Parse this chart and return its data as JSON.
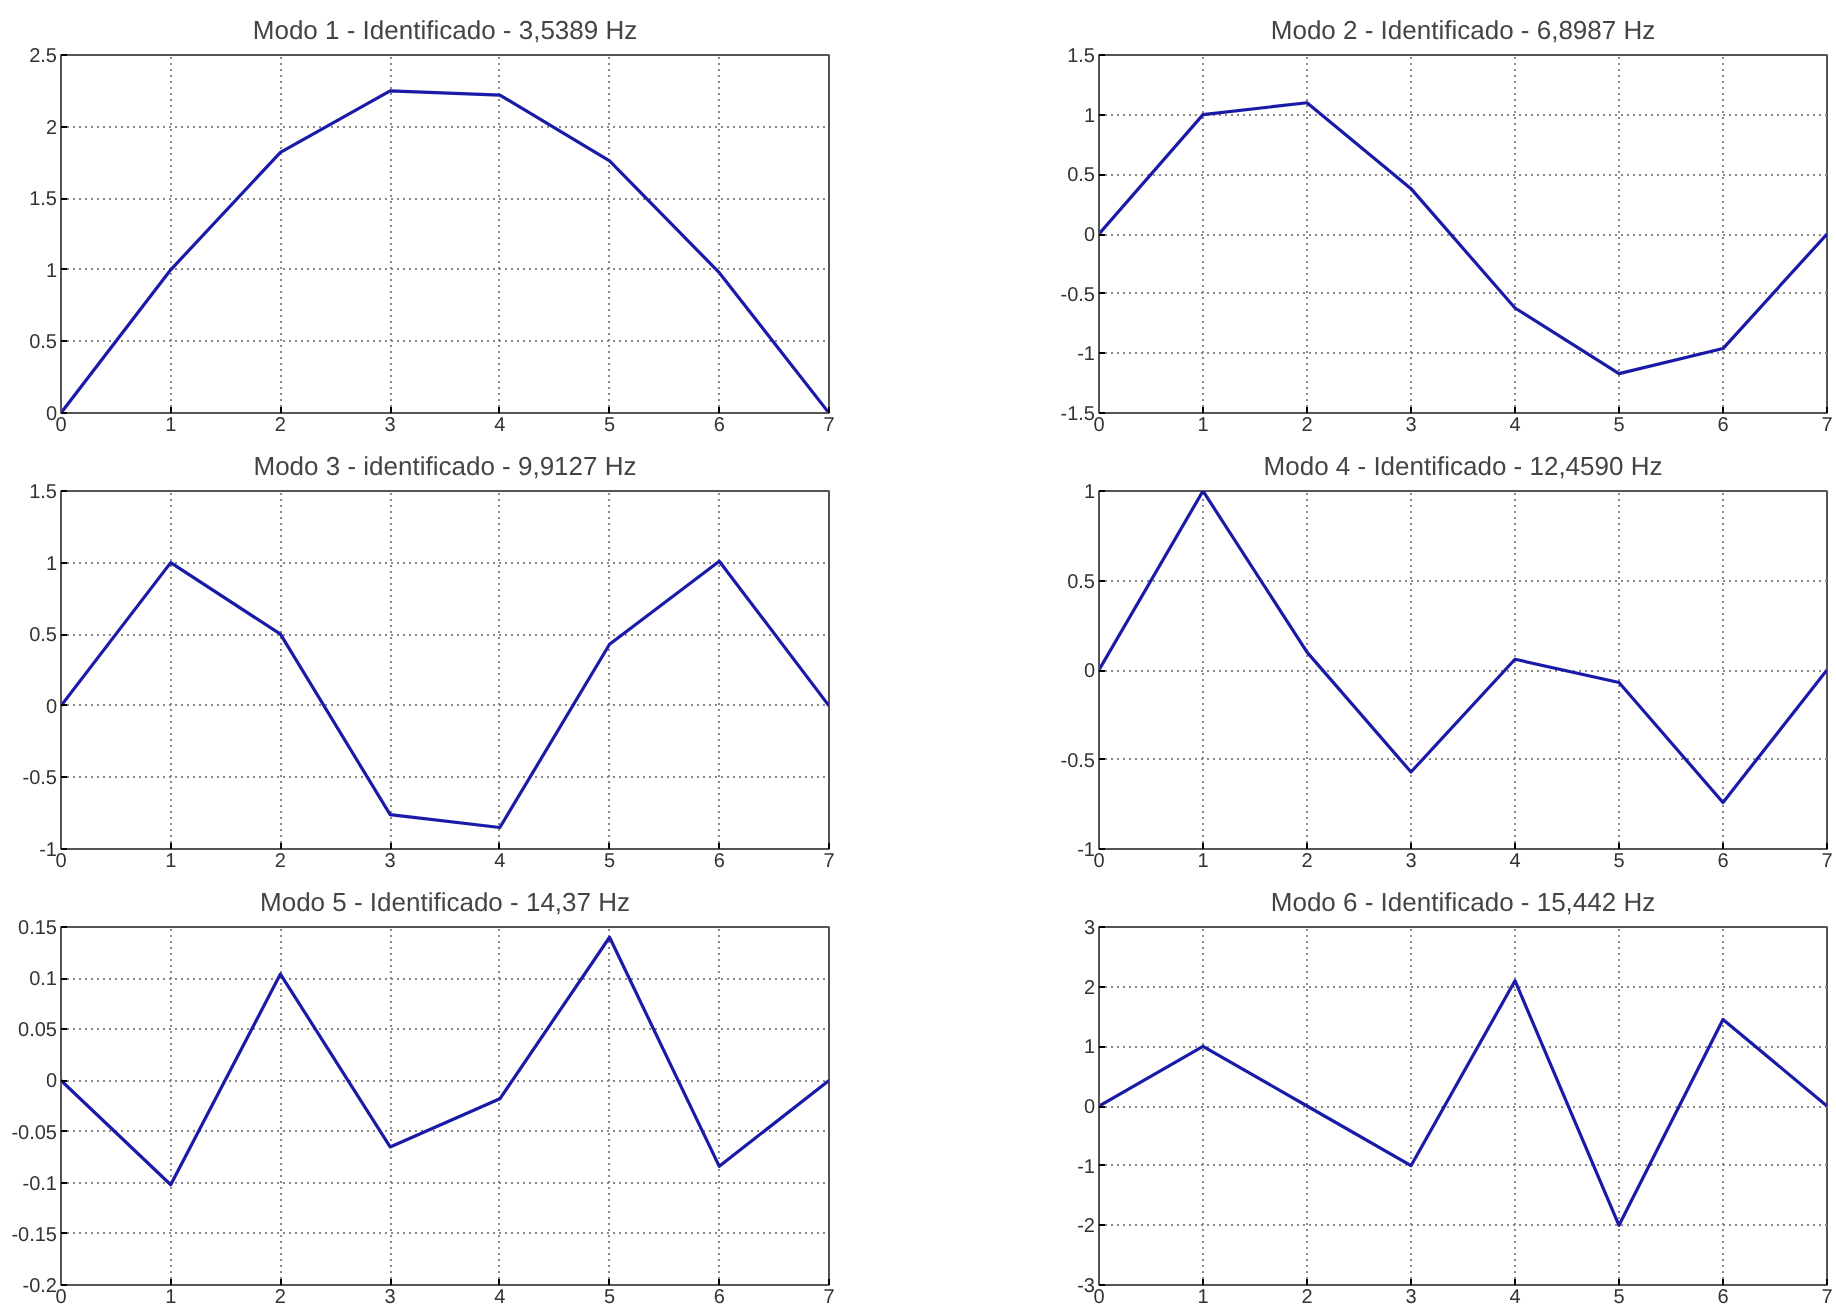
{
  "chart_data": [
    {
      "type": "line",
      "title": "Modo 1 - Identificado - 3,5389 Hz",
      "x": [
        0,
        1,
        2,
        3,
        4,
        5,
        6,
        7
      ],
      "values": [
        0,
        1,
        1.82,
        2.25,
        2.22,
        1.76,
        0.98,
        0
      ],
      "color": "#1a1aa8",
      "xlim": [
        0,
        7
      ],
      "ylim": [
        0,
        2.5
      ],
      "xticks": [
        0,
        1,
        2,
        3,
        4,
        5,
        6,
        7
      ],
      "yticks": [
        0,
        0.5,
        1,
        1.5,
        2,
        2.5
      ],
      "grid": true,
      "line_style": "solid"
    },
    {
      "type": "line",
      "title": "Modo 2 - Identificado - 6,8987 Hz",
      "x": [
        0,
        1,
        2,
        3,
        4,
        5,
        6,
        7
      ],
      "values": [
        0,
        1,
        1.1,
        0.38,
        -0.62,
        -1.17,
        -0.96,
        0
      ],
      "color": "#1a1aa8",
      "xlim": [
        0,
        7
      ],
      "ylim": [
        -1.5,
        1.5
      ],
      "xticks": [
        0,
        1,
        2,
        3,
        4,
        5,
        6,
        7
      ],
      "yticks": [
        -1.5,
        -1,
        -0.5,
        0,
        0.5,
        1,
        1.5
      ],
      "grid": true,
      "line_style": "solid"
    },
    {
      "type": "line",
      "title": "Modo 3 - identificado - 9,9127 Hz",
      "x": [
        0,
        1,
        2,
        3,
        4,
        5,
        6,
        7
      ],
      "values": [
        0,
        1,
        0.5,
        -0.76,
        -0.85,
        0.43,
        1.01,
        0
      ],
      "color": "#1a1aa8",
      "xlim": [
        0,
        7
      ],
      "ylim": [
        -1,
        1.5
      ],
      "xticks": [
        0,
        1,
        2,
        3,
        4,
        5,
        6,
        7
      ],
      "yticks": [
        -1,
        -0.5,
        0,
        0.5,
        1,
        1.5
      ],
      "grid": true,
      "line_style": "solid"
    },
    {
      "type": "line",
      "title": "Modo 4 - Identificado - 12,4590 Hz",
      "x": [
        0,
        1,
        2,
        3,
        4,
        5,
        6,
        7
      ],
      "values": [
        0,
        1,
        0.1,
        -0.57,
        0.06,
        -0.07,
        -0.74,
        0
      ],
      "color": "#1a1aa8",
      "xlim": [
        0,
        7
      ],
      "ylim": [
        -1,
        1
      ],
      "xticks": [
        0,
        1,
        2,
        3,
        4,
        5,
        6,
        7
      ],
      "yticks": [
        -1,
        -0.5,
        0,
        0.5,
        1
      ],
      "grid": true,
      "line_style": "solid"
    },
    {
      "type": "line",
      "title": "Modo 5 - Identificado - 14,37 Hz",
      "x": [
        0,
        1,
        2,
        3,
        4,
        5,
        6,
        7
      ],
      "values": [
        0,
        -0.102,
        0.104,
        -0.065,
        -0.018,
        0.14,
        -0.084,
        0
      ],
      "color": "#1a1aa8",
      "xlim": [
        0,
        7
      ],
      "ylim": [
        -0.2,
        0.15
      ],
      "xticks": [
        0,
        1,
        2,
        3,
        4,
        5,
        6,
        7
      ],
      "yticks": [
        -0.2,
        -0.15,
        -0.1,
        -0.05,
        0,
        0.05,
        0.1,
        0.15
      ],
      "grid": true,
      "line_style": "solid"
    },
    {
      "type": "line",
      "title": "Modo 6 - Identificado - 15,442 Hz",
      "x": [
        0,
        1,
        2,
        3,
        4,
        5,
        6,
        7
      ],
      "values": [
        0,
        1,
        0,
        -1,
        2.1,
        -2,
        1.45,
        0
      ],
      "color": "#1a1aa8",
      "xlim": [
        0,
        7
      ],
      "ylim": [
        -3,
        3
      ],
      "xticks": [
        0,
        1,
        2,
        3,
        4,
        5,
        6,
        7
      ],
      "yticks": [
        -3,
        -2,
        -1,
        0,
        1,
        2,
        3
      ],
      "grid": true,
      "line_style": "solid"
    }
  ]
}
